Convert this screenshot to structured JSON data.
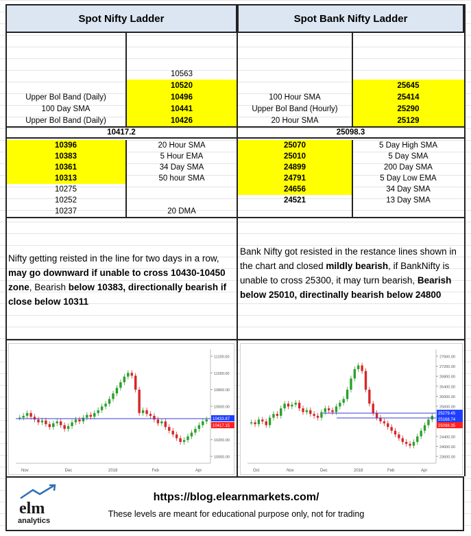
{
  "left": {
    "title": "Spot Nifty Ladder",
    "upper_rows": [
      {
        "label": "",
        "value": "",
        "yellow": false,
        "bold": false
      },
      {
        "label": "",
        "value": "",
        "yellow": false,
        "bold": false
      },
      {
        "label": "",
        "value": "10563",
        "yellow": false,
        "bold": false
      },
      {
        "label": "",
        "value": "10520",
        "yellow": true,
        "bold": true
      },
      {
        "label": "Upper Bol Band (Daily)",
        "value": "10496",
        "yellow": true,
        "bold": true
      },
      {
        "label": "100 Day SMA",
        "value": "10441",
        "yellow": true,
        "bold": true
      },
      {
        "label": "Upper Bol Band (Daily)",
        "value": "10426",
        "yellow": true,
        "bold": true
      }
    ],
    "spot": "10417.2",
    "lower_rows": [
      {
        "value": "10396",
        "label": "20 Hour SMA",
        "yellow": true,
        "bold": true
      },
      {
        "value": "10383",
        "label": "5 Hour EMA",
        "yellow": true,
        "bold": true
      },
      {
        "value": "10361",
        "label": "34 Day SMA",
        "yellow": true,
        "bold": true
      },
      {
        "value": "10313",
        "label": "50 hour SMA",
        "yellow": true,
        "bold": true
      },
      {
        "value": "10275",
        "label": "",
        "yellow": false,
        "bold": false
      },
      {
        "value": "10252",
        "label": "",
        "yellow": false,
        "bold": false
      },
      {
        "value": "10237",
        "label": "20 DMA",
        "yellow": false,
        "bold": false
      }
    ],
    "comment": {
      "p1": "Nifty getting reisted in the line for two days in a row, ",
      "b1": "may go downward if unable to cross 10430-10450 zone",
      "p2": ", Bearish ",
      "b2": "below 10383, directionally bearish if close below 10311"
    },
    "chart": {
      "y_ticks": [
        "11200.00",
        "11000.00",
        "10800.00",
        "10600.00",
        "10400.00",
        "10200.00",
        "10000.00"
      ],
      "x_ticks": [
        "Nov",
        "Dec",
        "2018",
        "Feb",
        "Apr"
      ],
      "price_label_1": "10433.87",
      "price_label_2": "10417.15",
      "label_color_1": "#1f3fff",
      "label_color_2": "#ff2020"
    }
  },
  "right": {
    "title": "Spot Bank Nifty Ladder",
    "upper_rows": [
      {
        "label": "",
        "value": "",
        "yellow": false,
        "bold": false
      },
      {
        "label": "",
        "value": "",
        "yellow": false,
        "bold": false
      },
      {
        "label": "",
        "value": "",
        "yellow": false,
        "bold": false
      },
      {
        "label": "",
        "value": "25645",
        "yellow": true,
        "bold": true
      },
      {
        "label": "100 Hour SMA",
        "value": "25414",
        "yellow": true,
        "bold": true
      },
      {
        "label": "Upper Bol Band (Hourly)",
        "value": "25290",
        "yellow": true,
        "bold": true
      },
      {
        "label": "20 Hour SMA",
        "value": "25129",
        "yellow": true,
        "bold": true
      }
    ],
    "spot": "25098.3",
    "lower_rows": [
      {
        "value": "25070",
        "label": "5 Day High SMA",
        "yellow": true,
        "bold": true
      },
      {
        "value": "25010",
        "label": "5 Day SMA",
        "yellow": true,
        "bold": true
      },
      {
        "value": "24899",
        "label": "200 Day SMA",
        "yellow": true,
        "bold": true
      },
      {
        "value": "24791",
        "label": "5 Day Low EMA",
        "yellow": true,
        "bold": true
      },
      {
        "value": "24656",
        "label": "34 Day SMA",
        "yellow": true,
        "bold": true
      },
      {
        "value": "24521",
        "label": "13 Day SMA",
        "yellow": false,
        "bold": true
      },
      {
        "value": "",
        "label": "",
        "yellow": false,
        "bold": false
      }
    ],
    "comment": {
      "p1": "Bank Nifty got resisted in the restance lines shown in the chart and closed ",
      "b1": "mildly bearish",
      "p2": ", if BankNifty is unable to cross 25300, it may turn bearish, ",
      "b2": "Bearish below 25010, directinally bearish below 24800"
    },
    "chart": {
      "y_ticks": [
        "27600.00",
        "27200.00",
        "26800.00",
        "26400.00",
        "26000.00",
        "25600.00",
        "25200.00",
        "24800.00",
        "24400.00",
        "24000.00",
        "23600.00"
      ],
      "x_ticks": [
        "Oct",
        "Nov",
        "Dec",
        "2018",
        "Feb",
        "Apr"
      ],
      "price_label_1": "25279.45",
      "price_label_2": "25168.74",
      "price_label_3": "25098.35",
      "label_color_1": "#1f3fff",
      "label_color_2": "#1f3fff",
      "label_color_3": "#ff2020"
    }
  },
  "footer": {
    "logo_text_1": "elm",
    "logo_text_2": "analytics",
    "url": "https://blog.elearnmarkets.com/",
    "disclaimer": "These levels are meant for educational purpose only, not for trading"
  }
}
